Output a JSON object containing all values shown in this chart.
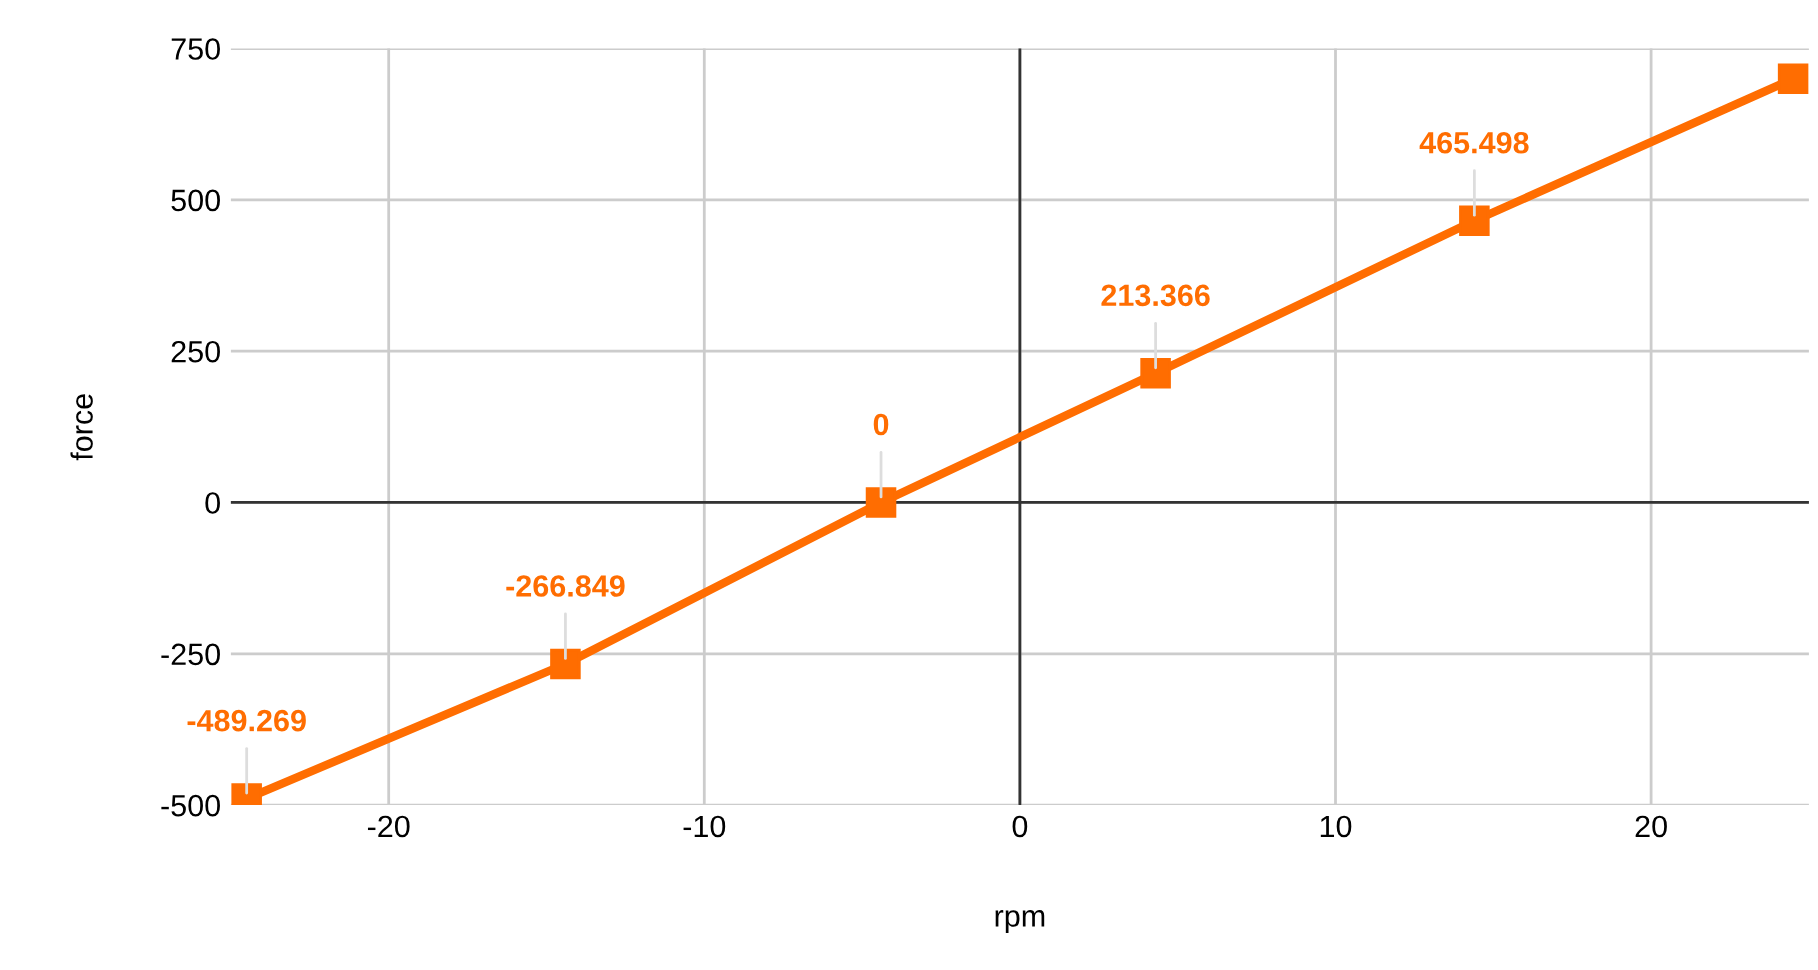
{
  "chart_data": {
    "type": "line",
    "xlabel": "rpm",
    "ylabel": "force",
    "x": [
      -24.5,
      -14.4,
      -4.4,
      4.3,
      14.4,
      24.5
    ],
    "series": [
      {
        "color": "#ff6d01",
        "values": [
          -489.269,
          -266.849,
          0,
          213.366,
          465.498,
          700
        ],
        "value_labels": [
          "-489.269",
          "-266.849",
          "0",
          "213.366",
          "465.498",
          null
        ]
      }
    ],
    "xlim": [
      -25,
      25
    ],
    "xticks": [
      -20,
      -10,
      0,
      10,
      20
    ],
    "ylim": [
      -500,
      750
    ],
    "yticks": [
      -500,
      -250,
      0,
      250,
      500,
      750
    ],
    "grid": true,
    "marker": "square",
    "line_style": "solid"
  }
}
